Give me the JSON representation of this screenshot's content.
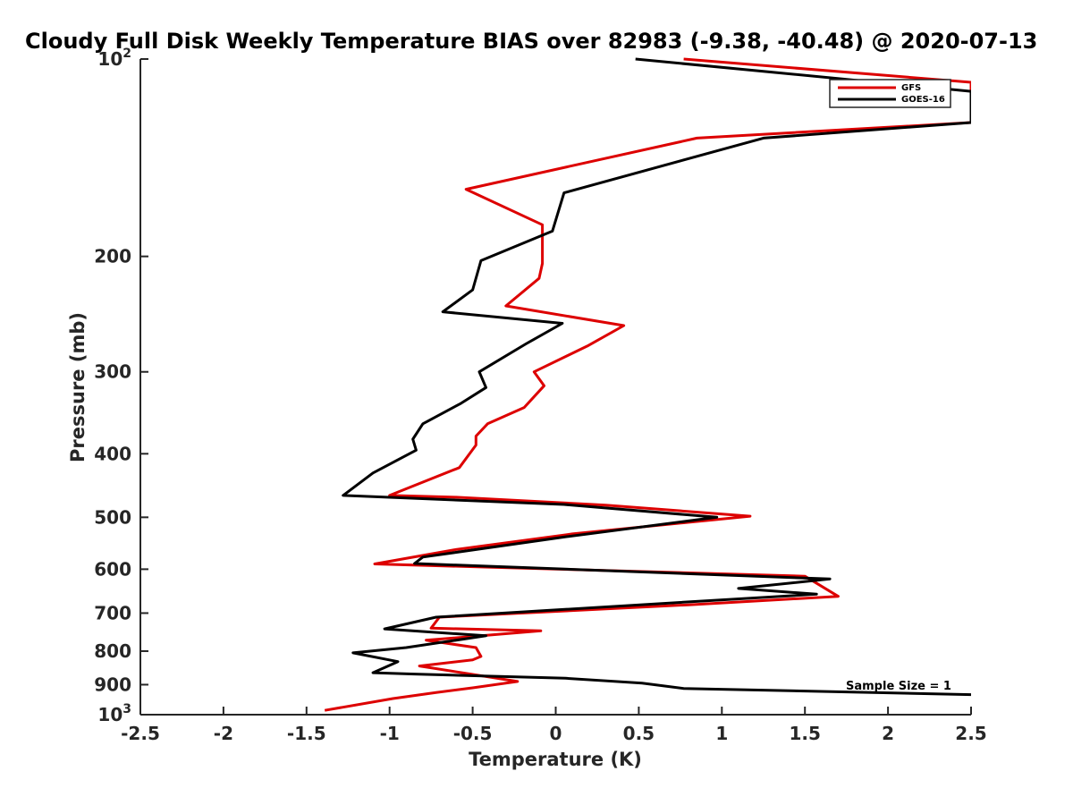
{
  "chart_data": {
    "type": "line",
    "title": "Cloudy Full Disk Weekly Temperature BIAS over 82983 (-9.38, -40.48) @ 2020-07-13",
    "xlabel": "Temperature (K)",
    "ylabel": "Pressure (mb)",
    "xlim": [
      -2.5,
      2.5
    ],
    "ylim": [
      100,
      1000
    ],
    "y_scale": "log",
    "y_reversed": true,
    "grid": false,
    "x_ticks": [
      -2.5,
      -2,
      -1.5,
      -1,
      -0.5,
      0,
      0.5,
      1,
      1.5,
      2,
      2.5
    ],
    "x_tick_labels": [
      "-2.5",
      "-2",
      "-1.5",
      "-1",
      "-0.5",
      "0",
      "0.5",
      "1",
      "1.5",
      "2",
      "2.5"
    ],
    "y_ticks": [
      {
        "value": 100,
        "base": "10",
        "exp": "2"
      },
      {
        "value": 200,
        "base": "200",
        "exp": ""
      },
      {
        "value": 300,
        "base": "300",
        "exp": ""
      },
      {
        "value": 400,
        "base": "400",
        "exp": ""
      },
      {
        "value": 500,
        "base": "500",
        "exp": ""
      },
      {
        "value": 600,
        "base": "600",
        "exp": ""
      },
      {
        "value": 700,
        "base": "700",
        "exp": ""
      },
      {
        "value": 800,
        "base": "800",
        "exp": ""
      },
      {
        "value": 900,
        "base": "900",
        "exp": ""
      },
      {
        "value": 1000,
        "base": "10",
        "exp": "3"
      }
    ],
    "legend_position": "top-right",
    "annotation": "Sample Size = 1",
    "series": [
      {
        "name": "GFS",
        "color": "#dd0000",
        "points": [
          [
            0.77,
            100
          ],
          [
            2.5,
            108.5
          ],
          [
            2.5,
            125
          ],
          [
            0.85,
            132
          ],
          [
            -0.54,
            158
          ],
          [
            -0.08,
            179
          ],
          [
            -0.08,
            205
          ],
          [
            -0.1,
            216
          ],
          [
            -0.3,
            238
          ],
          [
            0.41,
            255
          ],
          [
            0.19,
            274
          ],
          [
            -0.13,
            300
          ],
          [
            -0.07,
            315
          ],
          [
            -0.19,
            340
          ],
          [
            -0.41,
            360
          ],
          [
            -0.48,
            376
          ],
          [
            -0.48,
            388
          ],
          [
            -0.58,
            420
          ],
          [
            -1.0,
            463
          ],
          [
            -0.6,
            466
          ],
          [
            0.3,
            479
          ],
          [
            1.17,
            498
          ],
          [
            0.1,
            530
          ],
          [
            -0.6,
            560
          ],
          [
            -1.09,
            589
          ],
          [
            1.5,
            615
          ],
          [
            1.7,
            660
          ],
          [
            0.8,
            680
          ],
          [
            -0.7,
            710
          ],
          [
            -0.75,
            738
          ],
          [
            -0.09,
            745
          ],
          [
            -0.78,
            770
          ],
          [
            -0.48,
            790
          ],
          [
            -0.45,
            815
          ],
          [
            -0.5,
            825
          ],
          [
            -0.82,
            843
          ],
          [
            -0.23,
            890
          ],
          [
            -0.5,
            910
          ],
          [
            -0.72,
            925
          ],
          [
            -0.98,
            945
          ],
          [
            -1.39,
            985
          ]
        ]
      },
      {
        "name": "GOES-16",
        "color": "#000000",
        "points": [
          [
            0.48,
            100
          ],
          [
            2.5,
            112
          ],
          [
            2.5,
            125
          ],
          [
            1.25,
            132
          ],
          [
            0.05,
            160
          ],
          [
            -0.02,
            183
          ],
          [
            -0.45,
            203
          ],
          [
            -0.5,
            225
          ],
          [
            -0.68,
            243
          ],
          [
            0.04,
            253
          ],
          [
            -0.18,
            272
          ],
          [
            -0.46,
            300
          ],
          [
            -0.42,
            317
          ],
          [
            -0.57,
            335
          ],
          [
            -0.8,
            360
          ],
          [
            -0.86,
            380
          ],
          [
            -0.84,
            395
          ],
          [
            -1.1,
            428
          ],
          [
            -1.28,
            463
          ],
          [
            0.05,
            478
          ],
          [
            0.97,
            500
          ],
          [
            0.07,
            535
          ],
          [
            -0.8,
            575
          ],
          [
            -0.85,
            588
          ],
          [
            1.65,
            621
          ],
          [
            1.1,
            642
          ],
          [
            1.57,
            655
          ],
          [
            -0.72,
            710
          ],
          [
            -1.03,
            740
          ],
          [
            -0.42,
            758
          ],
          [
            -0.9,
            790
          ],
          [
            -1.22,
            805
          ],
          [
            -0.95,
            830
          ],
          [
            -1.1,
            863
          ],
          [
            -0.85,
            867
          ],
          [
            0.06,
            880
          ],
          [
            0.52,
            895
          ],
          [
            0.77,
            912
          ],
          [
            2.5,
            932
          ]
        ]
      }
    ]
  }
}
